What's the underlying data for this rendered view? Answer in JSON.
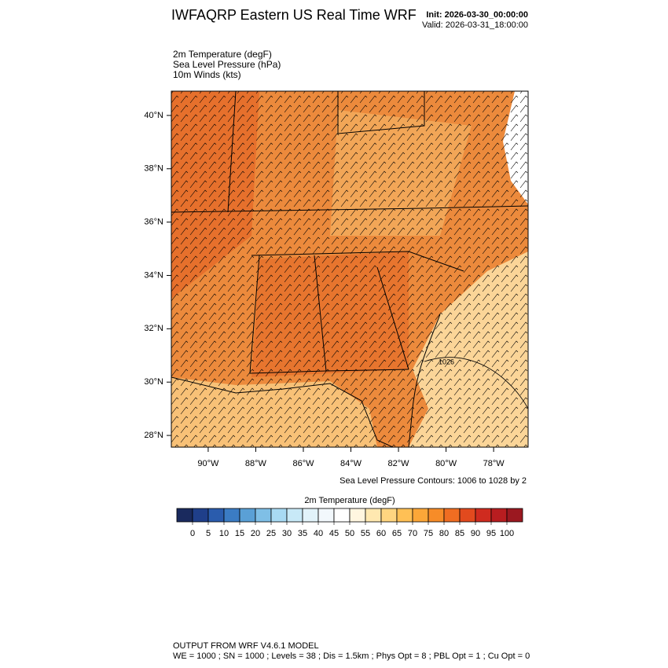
{
  "header": {
    "title": "IWFAQRP Eastern US Real Time WRF",
    "init": "Init: 2026-03-30_00:00:00",
    "valid": "Valid: 2026-03-31_18:00:00"
  },
  "fields": [
    "2m Temperature   (degF)",
    "Sea Level Pressure   (hPa)",
    "10m Winds   (kts)"
  ],
  "map": {
    "xlim": [
      -91.55,
      -76.55
    ],
    "ylim": [
      27.56,
      40.91
    ],
    "lat_ticks": [
      {
        "value": 28,
        "label": "28°N"
      },
      {
        "value": 30,
        "label": "30°N"
      },
      {
        "value": 32,
        "label": "32°N"
      },
      {
        "value": 34,
        "label": "34°N"
      },
      {
        "value": 36,
        "label": "36°N"
      },
      {
        "value": 38,
        "label": "38°N"
      },
      {
        "value": 40,
        "label": "40°N"
      }
    ],
    "lon_ticks": [
      {
        "value": -90,
        "label": "90°W"
      },
      {
        "value": -88,
        "label": "88°W"
      },
      {
        "value": -86,
        "label": "86°W"
      },
      {
        "value": -84,
        "label": "84°W"
      },
      {
        "value": -82,
        "label": "82°W"
      },
      {
        "value": -80,
        "label": "80°W"
      },
      {
        "value": -78,
        "label": "78°W"
      }
    ],
    "contour_label": "1026",
    "contour_note": "Sea Level Pressure Contours: 1006 to 1028 by 2"
  },
  "colorbar": {
    "label": "2m Temperature  (degF)",
    "ticks": [
      0,
      5,
      10,
      15,
      20,
      25,
      30,
      35,
      40,
      45,
      50,
      55,
      60,
      65,
      70,
      75,
      80,
      85,
      90,
      95,
      100
    ],
    "colors": [
      "#1a2a5e",
      "#1f3f8a",
      "#2a5cad",
      "#3b7cc4",
      "#5aa0d6",
      "#7fbfe6",
      "#a8daf3",
      "#c8e9f7",
      "#e2f3fa",
      "#f2f8fc",
      "#ffffff",
      "#fff6e0",
      "#ffe8b0",
      "#ffd580",
      "#ffc055",
      "#fca738",
      "#f78c28",
      "#f06d22",
      "#e24a1e",
      "#cf2b1f",
      "#b81d20",
      "#9b1820"
    ]
  },
  "footer": [
    "OUTPUT FROM WRF V4.6.1 MODEL",
    "WE = 1000 ; SN = 1000 ; Levels = 38 ; Dis = 1.5km ; Phys Opt = 8 ; PBL Opt = 1 ; Cu Opt = 0"
  ]
}
